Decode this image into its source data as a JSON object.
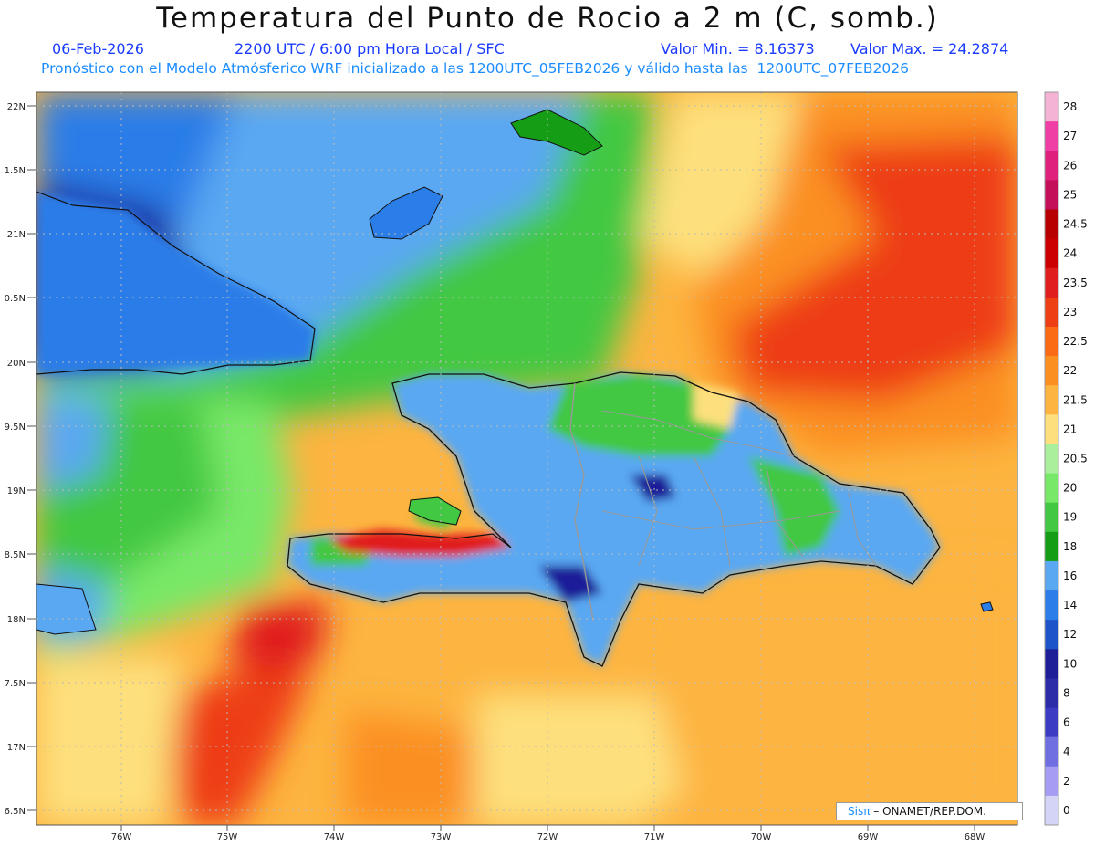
{
  "header": {
    "title": "Temperatura del Punto de Rocio a 2 m (C, somb.)",
    "date": "06-Feb-2026",
    "time": "2200 UTC / 6:00 pm Hora Local / SFC",
    "min_label": "Valor Min. = 8.16373",
    "max_label": "Valor Max. = 24.2874",
    "forecast_line": "Pronóstico con el Modelo Atmósferico WRF inicializado a las 1200UTC_05FEB2026 y válido hasta las  1200UTC_07FEB2026"
  },
  "axes": {
    "lat_labels": [
      "22N",
      "1.5N",
      "21N",
      "0.5N",
      "20N",
      "9.5N",
      "19N",
      "8.5N",
      "18N",
      "7.5N",
      "17N",
      "6.5N"
    ],
    "lon_labels": [
      "76W",
      "75W",
      "74W",
      "73W",
      "72W",
      "71W",
      "70W",
      "69W",
      "68W"
    ]
  },
  "colorbar": {
    "labels": [
      "28",
      "27",
      "26",
      "25",
      "24.5",
      "24",
      "23.5",
      "23",
      "22.5",
      "22",
      "21.5",
      "21",
      "20.5",
      "20",
      "19",
      "18",
      "16",
      "14",
      "12",
      "10",
      "8",
      "6",
      "4",
      "2",
      "0"
    ],
    "colors": [
      "#f4b3d4",
      "#ef3fa4",
      "#e0217b",
      "#c4105a",
      "#b80000",
      "#cc0000",
      "#e01e1e",
      "#ee3e14",
      "#fb6a14",
      "#fb8f20",
      "#fdb440",
      "#fde07d",
      "#aaf09c",
      "#78e868",
      "#42c842",
      "#159e15",
      "#5aa8f2",
      "#2b7de8",
      "#1d55c8",
      "#1e1e98",
      "#2c2ca8",
      "#3b3bc4",
      "#6f6fe2",
      "#a69cf4",
      "#d4d4f6"
    ]
  },
  "credit": {
    "brand": "Sisπ",
    "text": "– ONAMET/REP.DOM."
  }
}
